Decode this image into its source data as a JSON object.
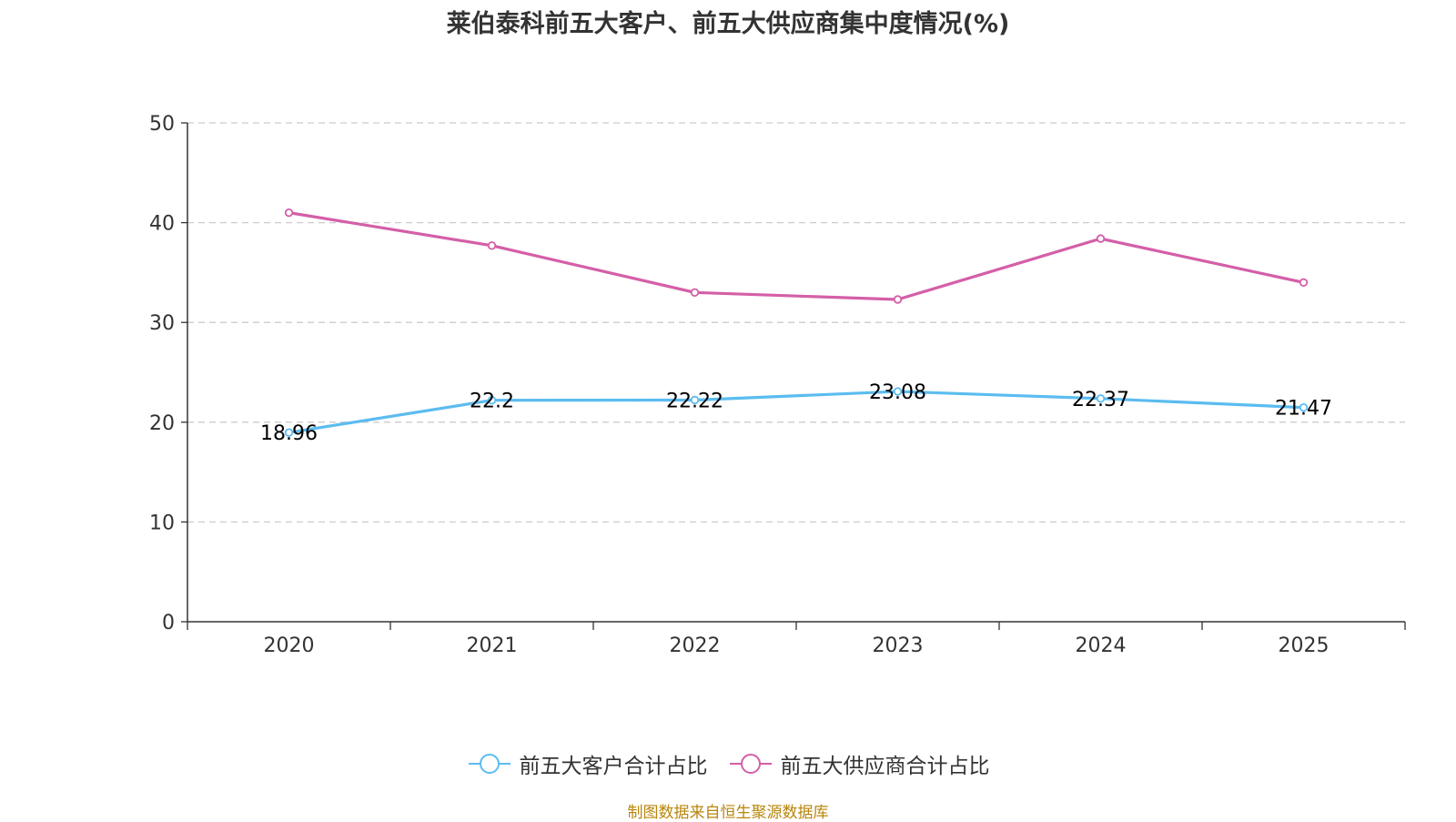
{
  "colors": {
    "customers": "#5bbcf0",
    "suppliers": "#d45fa8",
    "axis": "#333333",
    "grid": "#cccccc",
    "source": "#b8860b"
  },
  "chart_data": {
    "type": "line",
    "title": "莱伯泰科前五大客户、前五大供应商集中度情况(%)",
    "xlabel": "",
    "ylabel": "",
    "categories": [
      "2020",
      "2021",
      "2022",
      "2023",
      "2024",
      "2025"
    ],
    "ylim": [
      0,
      50
    ],
    "yticks": [
      0,
      10,
      20,
      30,
      40,
      50
    ],
    "grid": true,
    "legend_position": "bottom-center",
    "series": [
      {
        "name": "前五大客户合计占比",
        "color_key": "customers",
        "values": [
          18.96,
          22.2,
          22.22,
          23.08,
          22.37,
          21.47
        ],
        "labels": [
          "18.96",
          "22.2",
          "22.22",
          "23.08",
          "22.37",
          "21.47"
        ],
        "show_labels": true
      },
      {
        "name": "前五大供应商合计占比",
        "color_key": "suppliers",
        "values": [
          41.0,
          37.7,
          33.0,
          32.3,
          38.4,
          34.0
        ],
        "labels": [],
        "show_labels": false
      }
    ]
  },
  "footer": {
    "source": "制图数据来自恒生聚源数据库"
  }
}
